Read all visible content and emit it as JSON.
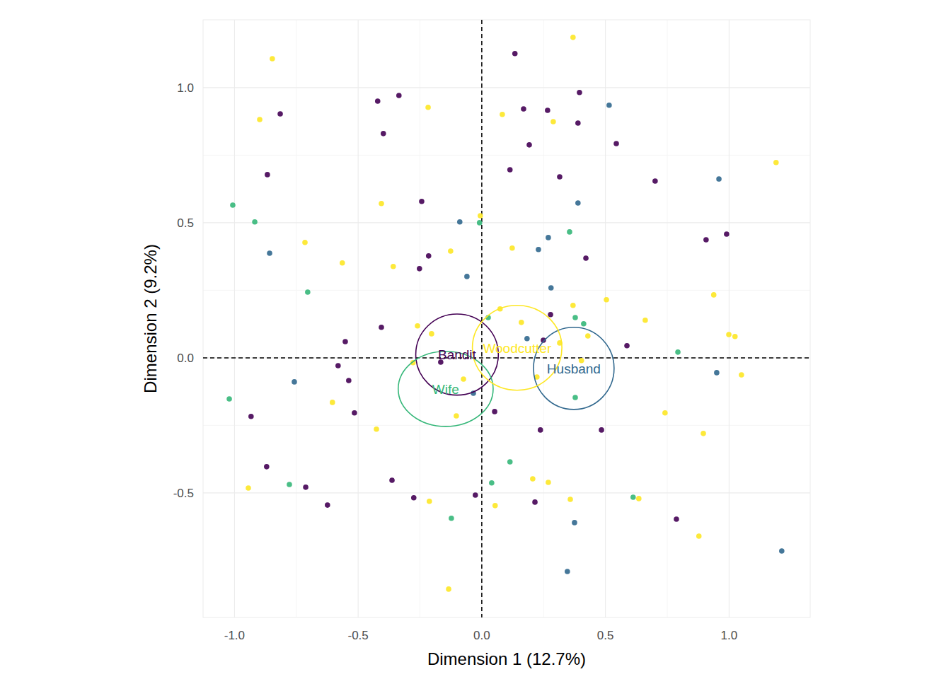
{
  "chart_data": {
    "type": "scatter",
    "x_label": "Dimension 1 (12.7%)",
    "y_label": "Dimension 2 (9.2%)",
    "xlim": [
      -1.127,
      1.328
    ],
    "ylim": [
      -0.961,
      1.251
    ],
    "xticks": [
      {
        "value": -1.0,
        "label": "-1.0"
      },
      -0.5,
      {
        "value": 0.0,
        "label": "0.0"
      },
      0.5,
      {
        "value": 1.0,
        "label": "1.0"
      }
    ],
    "yticks": [
      -0.5,
      {
        "value": 0.0,
        "label": "0.0"
      },
      0.5,
      {
        "value": 1.0,
        "label": "1.0"
      }
    ],
    "grid": true,
    "reference_lines": {
      "x": 0,
      "y": 0
    },
    "series": [
      {
        "name": "Bandit",
        "color": "#440154",
        "x": [
          0.134,
          -0.815,
          -0.335,
          -0.421,
          -0.398,
          0.169,
          0.266,
          0.395,
          0.389,
          0.192,
          0.544,
          -0.867,
          0.114,
          0.315,
          0.701,
          -0.243,
          0.907,
          0.99,
          -0.215,
          -0.252,
          0.421,
          -0.406,
          0.278,
          -0.552,
          0.249,
          0.587,
          -0.581,
          -0.538,
          -0.166,
          -0.515,
          -0.933,
          0.052,
          0.237,
          0.484,
          -0.87,
          -0.712,
          -0.363,
          -0.624,
          -0.275,
          -0.026,
          0.215,
          0.787
        ],
        "y": [
          1.126,
          0.903,
          0.971,
          0.95,
          0.83,
          0.921,
          0.916,
          0.982,
          0.869,
          0.788,
          0.793,
          0.678,
          0.696,
          0.67,
          0.654,
          0.579,
          0.437,
          0.458,
          0.377,
          0.33,
          0.369,
          0.113,
          0.16,
          0.06,
          0.065,
          0.045,
          -0.029,
          -0.084,
          -0.016,
          -0.204,
          -0.217,
          -0.199,
          -0.267,
          -0.267,
          -0.403,
          -0.479,
          -0.453,
          -0.545,
          -0.518,
          -0.508,
          -0.534,
          -0.597
        ],
        "ellipse": {
          "cx": -0.1,
          "cy": 0.012,
          "rx": 0.167,
          "ry": 0.15
        }
      },
      {
        "name": "Husband",
        "color": "#31688e",
        "x": [
          0.515,
          0.959,
          0.389,
          -0.089,
          -0.858,
          0.269,
          0.229,
          -0.06,
          0.28,
          0.183,
          0.95,
          -0.758,
          -0.034,
          0.375,
          0.346,
          1.213
        ],
        "y": [
          0.935,
          0.662,
          0.573,
          0.503,
          0.387,
          0.445,
          0.401,
          0.301,
          0.259,
          0.071,
          -0.055,
          -0.089,
          -0.131,
          -0.61,
          -0.791,
          -0.715
        ],
        "ellipse": {
          "cx": 0.372,
          "cy": -0.039,
          "rx": 0.163,
          "ry": 0.152
        }
      },
      {
        "name": "Wife",
        "color": "#35b779",
        "x": [
          -1.007,
          -0.918,
          -0.704,
          -0.009,
          0.355,
          0.026,
          0.378,
          0.412,
          0.793,
          -1.021,
          0.378,
          -0.778,
          0.114,
          0.04,
          0.612,
          -0.123
        ],
        "y": [
          0.565,
          0.503,
          0.243,
          0.5,
          0.466,
          0.149,
          0.149,
          0.126,
          0.021,
          -0.152,
          -0.147,
          -0.469,
          -0.385,
          -0.463,
          -0.516,
          -0.594
        ],
        "ellipse": {
          "cx": -0.146,
          "cy": -0.115,
          "rx": 0.192,
          "ry": 0.139
        }
      },
      {
        "name": "Woodcutter",
        "color": "#fde725",
        "x": [
          -0.847,
          -0.898,
          -0.217,
          0.369,
          0.083,
          0.289,
          1.19,
          -0.406,
          -0.006,
          -0.715,
          -0.126,
          0.123,
          -0.564,
          -0.358,
          0.938,
          0.369,
          0.504,
          0.661,
          0.074,
          0.16,
          -0.26,
          -0.203,
          0.315,
          0.999,
          1.024,
          0.429,
          0.403,
          1.05,
          -0.278,
          -0.074,
          0.223,
          -0.103,
          -0.604,
          0.741,
          -0.426,
          0.896,
          -0.944,
          0.206,
          0.269,
          -0.212,
          0.054,
          0.358,
          0.635,
          0.878,
          -0.134
        ],
        "y": [
          1.107,
          0.882,
          0.927,
          1.186,
          0.901,
          0.874,
          0.723,
          0.571,
          0.526,
          0.427,
          0.395,
          0.406,
          0.351,
          0.338,
          0.233,
          0.194,
          0.215,
          0.139,
          0.181,
          0.131,
          0.118,
          0.089,
          0.055,
          0.086,
          0.079,
          0.081,
          -0.01,
          -0.063,
          -0.018,
          -0.079,
          -0.071,
          -0.215,
          -0.165,
          -0.204,
          -0.264,
          -0.28,
          -0.482,
          -0.448,
          -0.461,
          -0.531,
          -0.547,
          -0.524,
          -0.521,
          -0.66,
          -0.856
        ],
        "ellipse": {
          "cx": 0.143,
          "cy": 0.037,
          "rx": 0.181,
          "ry": 0.157
        }
      }
    ]
  }
}
